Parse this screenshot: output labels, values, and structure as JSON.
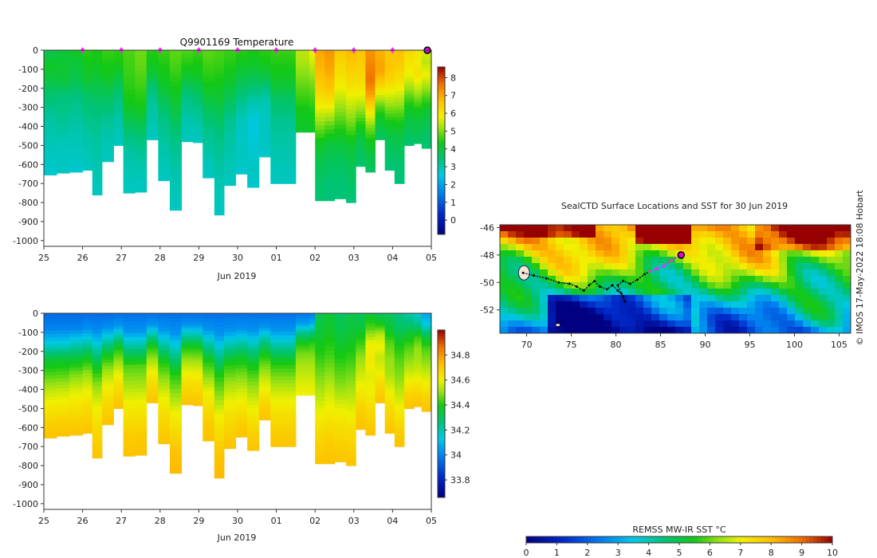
{
  "chart_data": [
    {
      "type": "heatmap",
      "id": "temperature",
      "title": "Q9901169  Temperature",
      "xlabel": "Jun 2019",
      "x_tick_labels": [
        "25",
        "26",
        "27",
        "28",
        "29",
        "30",
        "01",
        "02",
        "03",
        "04",
        "05"
      ],
      "x_range_days": [
        0,
        10
      ],
      "y_ticks": [
        0,
        -100,
        -200,
        -300,
        -400,
        -500,
        -600,
        -700,
        -800,
        -900,
        -1000
      ],
      "ylim": [
        -1030,
        0
      ],
      "colorbar": {
        "min": -0.8,
        "max": 8.6,
        "ticks": [
          0,
          1,
          2,
          3,
          4,
          5,
          6,
          7,
          8
        ]
      },
      "surface_markers_days": [
        1,
        2,
        3,
        4,
        5,
        6,
        7,
        8,
        9,
        10
      ],
      "profiles": [
        {
          "day": 0.0,
          "depth": -655,
          "t": [
            3.8,
            4.2,
            3.9,
            3.5,
            3.2,
            3.0,
            2.9,
            2.8,
            2.7
          ]
        },
        {
          "day": 0.33,
          "depth": -645,
          "t": [
            4.0,
            4.1,
            4.0,
            3.4,
            3.3,
            3.1,
            2.9,
            2.8,
            2.8
          ]
        },
        {
          "day": 0.66,
          "depth": -640,
          "t": [
            4.2,
            4.0,
            3.8,
            3.4,
            3.2,
            3.0,
            2.9,
            2.8,
            2.7
          ]
        },
        {
          "day": 1.0,
          "depth": -630,
          "t": [
            4.5,
            4.3,
            4.1,
            3.6,
            3.4,
            3.2,
            3.0,
            2.9,
            2.8
          ]
        },
        {
          "day": 1.25,
          "depth": -760,
          "t": [
            4.4,
            4.2,
            3.9,
            3.5,
            3.3,
            3.1,
            3.0,
            2.9,
            2.8
          ]
        },
        {
          "day": 1.5,
          "depth": -585,
          "t": [
            4.6,
            4.4,
            4.2,
            3.8,
            3.5,
            3.2,
            3.0,
            2.9,
            2.8
          ]
        },
        {
          "day": 1.8,
          "depth": -500,
          "t": [
            4.5,
            4.4,
            4.1,
            3.7,
            3.4,
            3.2,
            3.0,
            2.9,
            2.8
          ]
        },
        {
          "day": 2.05,
          "depth": -750,
          "t": [
            4.7,
            4.6,
            4.5,
            4.3,
            3.8,
            3.3,
            3.0,
            2.9,
            2.8
          ]
        },
        {
          "day": 2.35,
          "depth": -745,
          "t": [
            4.9,
            4.8,
            4.6,
            4.4,
            3.9,
            3.4,
            3.1,
            2.9,
            2.8
          ]
        },
        {
          "day": 2.65,
          "depth": -470,
          "t": [
            4.5,
            4.3,
            4.1,
            3.6,
            3.3,
            3.1,
            3.0,
            2.9,
            2.8
          ]
        },
        {
          "day": 2.95,
          "depth": -685,
          "t": [
            4.6,
            4.4,
            4.2,
            3.8,
            3.4,
            3.2,
            3.0,
            2.9,
            2.8
          ]
        },
        {
          "day": 3.25,
          "depth": -840,
          "t": [
            4.8,
            4.6,
            4.3,
            3.9,
            3.5,
            3.2,
            3.0,
            2.9,
            2.8
          ]
        },
        {
          "day": 3.55,
          "depth": -480,
          "t": [
            4.7,
            4.5,
            4.2,
            3.8,
            3.4,
            3.2,
            3.0,
            2.9,
            2.8
          ]
        },
        {
          "day": 3.85,
          "depth": -485,
          "t": [
            4.6,
            4.4,
            4.3,
            3.9,
            3.6,
            3.3,
            3.1,
            2.9,
            2.8
          ]
        },
        {
          "day": 4.1,
          "depth": -670,
          "t": [
            4.8,
            4.6,
            4.4,
            4.0,
            3.6,
            3.3,
            3.1,
            2.9,
            2.8
          ]
        },
        {
          "day": 4.4,
          "depth": -865,
          "t": [
            4.7,
            4.5,
            4.2,
            3.8,
            3.4,
            3.2,
            3.0,
            2.9,
            2.8
          ]
        },
        {
          "day": 4.65,
          "depth": -710,
          "t": [
            4.6,
            4.4,
            4.1,
            3.7,
            3.3,
            3.1,
            3.0,
            2.9,
            2.8
          ]
        },
        {
          "day": 4.95,
          "depth": -650,
          "t": [
            4.5,
            4.2,
            3.8,
            3.4,
            3.0,
            2.8,
            2.8,
            2.8,
            2.7
          ]
        },
        {
          "day": 5.25,
          "depth": -720,
          "t": [
            4.4,
            4.1,
            3.6,
            3.0,
            2.6,
            2.6,
            2.7,
            2.8,
            2.7
          ]
        },
        {
          "day": 5.55,
          "depth": -560,
          "t": [
            4.5,
            4.3,
            3.9,
            3.3,
            2.9,
            2.8,
            2.8,
            2.8,
            2.7
          ]
        },
        {
          "day": 5.85,
          "depth": -700,
          "t": [
            4.6,
            4.4,
            4.1,
            3.6,
            3.3,
            3.1,
            3.0,
            2.9,
            2.8
          ]
        },
        {
          "day": 6.2,
          "depth": -700,
          "t": [
            4.6,
            4.4,
            4.1,
            3.6,
            3.3,
            3.1,
            3.0,
            2.9,
            2.8
          ]
        },
        {
          "day": 6.5,
          "depth": -430,
          "t": [
            5.4,
            5.3,
            5.1,
            4.9,
            4.7,
            4.5,
            4.3,
            4.2,
            4.1
          ]
        },
        {
          "day": 6.85,
          "depth": -430,
          "t": [
            5.8,
            5.6,
            5.3,
            5.0,
            4.8,
            4.6,
            4.4,
            4.3,
            4.2
          ]
        },
        {
          "day": 7.0,
          "depth": -790,
          "t": [
            7.0,
            6.8,
            6.4,
            5.8,
            5.0,
            4.2,
            3.8,
            3.6,
            3.5
          ]
        },
        {
          "day": 7.25,
          "depth": -790,
          "t": [
            7.2,
            7.0,
            6.6,
            5.8,
            4.8,
            4.0,
            3.7,
            3.5,
            3.4
          ]
        },
        {
          "day": 7.5,
          "depth": -780,
          "t": [
            6.5,
            6.2,
            5.8,
            5.2,
            4.6,
            4.0,
            3.7,
            3.5,
            3.4
          ]
        },
        {
          "day": 7.8,
          "depth": -800,
          "t": [
            6.8,
            6.4,
            6.0,
            5.4,
            4.8,
            4.1,
            3.8,
            3.6,
            3.4
          ]
        },
        {
          "day": 8.05,
          "depth": -610,
          "t": [
            6.6,
            6.4,
            6.2,
            5.8,
            5.2,
            4.5,
            4.0,
            3.7,
            3.5
          ]
        },
        {
          "day": 8.3,
          "depth": -640,
          "t": [
            7.2,
            7.4,
            7.6,
            7.0,
            6.0,
            5.0,
            4.3,
            3.9,
            3.6
          ]
        },
        {
          "day": 8.55,
          "depth": -470,
          "t": [
            6.8,
            7.0,
            7.0,
            6.4,
            5.6,
            4.8,
            4.2,
            3.9,
            3.6
          ]
        },
        {
          "day": 8.8,
          "depth": -630,
          "t": [
            6.5,
            6.6,
            6.3,
            5.6,
            4.9,
            4.2,
            3.8,
            3.6,
            3.4
          ]
        },
        {
          "day": 9.05,
          "depth": -700,
          "t": [
            6.7,
            6.4,
            6.0,
            5.3,
            4.6,
            4.0,
            3.7,
            3.5,
            3.4
          ]
        },
        {
          "day": 9.3,
          "depth": -500,
          "t": [
            6.2,
            6.0,
            5.8,
            5.3,
            4.7,
            4.2,
            3.9,
            3.7,
            3.5
          ]
        },
        {
          "day": 9.55,
          "depth": -490,
          "t": [
            6.0,
            5.9,
            6.1,
            5.6,
            5.0,
            4.4,
            4.0,
            3.8,
            3.6
          ]
        },
        {
          "day": 9.75,
          "depth": -515,
          "t": [
            5.6,
            5.4,
            5.8,
            5.2,
            4.6,
            4.1,
            3.8,
            3.6,
            3.5
          ]
        }
      ]
    },
    {
      "type": "heatmap",
      "id": "salinity",
      "title": "",
      "xlabel": "Jun 2019",
      "x_tick_labels": [
        "25",
        "26",
        "27",
        "28",
        "29",
        "30",
        "01",
        "02",
        "03",
        "04",
        "05"
      ],
      "x_range_days": [
        0,
        10
      ],
      "y_ticks": [
        0,
        -100,
        -200,
        -300,
        -400,
        -500,
        -600,
        -700,
        -800,
        -900,
        -1000
      ],
      "ylim": [
        -1030,
        0
      ],
      "colorbar": {
        "min": 33.66,
        "max": 35.0,
        "ticks": [
          33.8,
          34,
          34.2,
          34.4,
          34.6,
          34.8
        ]
      },
      "profiles_follow_temperature_depths": true,
      "profile_salinity": [
        [
          33.95,
          34.0,
          34.15,
          34.35,
          34.45,
          34.55,
          34.62,
          34.68,
          34.72
        ],
        [
          33.95,
          34.0,
          34.15,
          34.35,
          34.45,
          34.55,
          34.62,
          34.68,
          34.72
        ],
        [
          33.95,
          34.0,
          34.18,
          34.35,
          34.48,
          34.57,
          34.63,
          34.68,
          34.72
        ],
        [
          33.95,
          34.02,
          34.2,
          34.38,
          34.5,
          34.58,
          34.64,
          34.68,
          34.72
        ],
        [
          33.95,
          34.02,
          34.2,
          34.38,
          34.5,
          34.58,
          34.64,
          34.68,
          34.72
        ],
        [
          33.95,
          34.02,
          34.2,
          34.38,
          34.5,
          34.58,
          34.64,
          34.68,
          34.72
        ],
        [
          33.96,
          34.03,
          34.22,
          34.4,
          34.5,
          34.58,
          34.64,
          34.68,
          34.72
        ],
        [
          33.96,
          34.03,
          34.25,
          34.45,
          34.52,
          34.6,
          34.65,
          34.7,
          34.72
        ],
        [
          33.96,
          34.03,
          34.25,
          34.45,
          34.52,
          34.6,
          34.65,
          34.7,
          34.72
        ],
        [
          33.96,
          34.03,
          34.22,
          34.4,
          34.5,
          34.58,
          34.64,
          34.68,
          34.72
        ],
        [
          33.96,
          34.03,
          34.22,
          34.4,
          34.5,
          34.58,
          34.64,
          34.68,
          34.72
        ],
        [
          33.96,
          34.03,
          34.22,
          34.4,
          34.5,
          34.6,
          34.66,
          34.72,
          34.74
        ],
        [
          33.96,
          34.03,
          34.22,
          34.4,
          34.5,
          34.58,
          34.64,
          34.68,
          34.72
        ],
        [
          33.96,
          34.03,
          34.22,
          34.4,
          34.5,
          34.58,
          34.64,
          34.68,
          34.72
        ],
        [
          33.96,
          34.03,
          34.22,
          34.4,
          34.5,
          34.6,
          34.65,
          34.7,
          34.72
        ],
        [
          33.96,
          34.03,
          34.22,
          34.4,
          34.5,
          34.6,
          34.66,
          34.72,
          34.74
        ],
        [
          33.96,
          34.03,
          34.22,
          34.4,
          34.5,
          34.58,
          34.64,
          34.68,
          34.72
        ],
        [
          33.96,
          34.03,
          34.22,
          34.38,
          34.48,
          34.56,
          34.62,
          34.68,
          34.72
        ],
        [
          33.96,
          34.03,
          34.22,
          34.38,
          34.48,
          34.56,
          34.62,
          34.68,
          34.72
        ],
        [
          33.96,
          34.03,
          34.22,
          34.38,
          34.48,
          34.56,
          34.62,
          34.68,
          34.72
        ],
        [
          33.96,
          34.03,
          34.22,
          34.4,
          34.5,
          34.58,
          34.64,
          34.68,
          34.72
        ],
        [
          33.96,
          34.03,
          34.22,
          34.4,
          34.5,
          34.58,
          34.64,
          34.68,
          34.72
        ],
        [
          33.97,
          34.05,
          34.25,
          34.4,
          34.48,
          34.52,
          34.55,
          34.58,
          34.6
        ],
        [
          33.98,
          34.08,
          34.28,
          34.42,
          34.48,
          34.52,
          34.55,
          34.58,
          34.6
        ],
        [
          34.32,
          34.35,
          34.4,
          34.46,
          34.52,
          34.58,
          34.64,
          34.68,
          34.72
        ],
        [
          34.35,
          34.38,
          34.42,
          34.48,
          34.55,
          34.6,
          34.65,
          34.7,
          34.72
        ],
        [
          34.3,
          34.33,
          34.38,
          34.44,
          34.5,
          34.58,
          34.64,
          34.68,
          34.72
        ],
        [
          34.32,
          34.35,
          34.4,
          34.46,
          34.52,
          34.58,
          34.64,
          34.68,
          34.72
        ],
        [
          34.3,
          34.35,
          34.42,
          34.5,
          34.55,
          34.6,
          34.65,
          34.7,
          34.72
        ],
        [
          34.35,
          34.45,
          34.6,
          34.62,
          34.58,
          34.6,
          34.64,
          34.68,
          34.72
        ],
        [
          34.3,
          34.4,
          34.55,
          34.6,
          34.55,
          34.58,
          34.64,
          34.68,
          34.72
        ],
        [
          34.3,
          34.35,
          34.45,
          34.5,
          34.52,
          34.58,
          34.64,
          34.68,
          34.72
        ],
        [
          34.25,
          34.3,
          34.4,
          34.46,
          34.5,
          34.56,
          34.62,
          34.68,
          34.72
        ],
        [
          34.2,
          34.28,
          34.38,
          34.45,
          34.5,
          34.56,
          34.62,
          34.68,
          34.72
        ],
        [
          34.15,
          34.25,
          34.42,
          34.5,
          34.52,
          34.56,
          34.62,
          34.68,
          34.72
        ],
        [
          34.05,
          34.15,
          34.35,
          34.45,
          34.5,
          34.56,
          34.62,
          34.68,
          34.72
        ]
      ]
    },
    {
      "type": "heatmap",
      "id": "sst-map",
      "title": "SealCTD Surface Locations and SST for 30 Jun 2019",
      "xlim": [
        67,
        106.3
      ],
      "ylim": [
        -53.7,
        -45.8
      ],
      "x_ticks": [
        70,
        75,
        80,
        85,
        90,
        95,
        100,
        105
      ],
      "y_ticks": [
        -46,
        -48,
        -50,
        -52
      ],
      "colorbar": {
        "label": "REMSS MW-IR SST °C",
        "min": 0,
        "max": 10,
        "ticks": [
          0,
          1,
          2,
          3,
          4,
          5,
          6,
          7,
          8,
          9,
          10
        ]
      },
      "current_position": [
        87.3,
        -48.0
      ],
      "recent_track": [
        [
          83.8,
          -49.2
        ],
        [
          84.6,
          -49.0
        ],
        [
          85.4,
          -48.8
        ],
        [
          86.2,
          -48.4
        ],
        [
          87.3,
          -48.0
        ]
      ],
      "track": [
        [
          69.6,
          -49.3
        ],
        [
          70.8,
          -49.5
        ],
        [
          72.2,
          -49.7
        ],
        [
          73.6,
          -50.0
        ],
        [
          74.8,
          -50.1
        ],
        [
          75.6,
          -50.3
        ],
        [
          76.4,
          -50.6
        ],
        [
          77.0,
          -50.2
        ],
        [
          77.6,
          -49.9
        ],
        [
          78.2,
          -50.3
        ],
        [
          79.0,
          -50.5
        ],
        [
          79.6,
          -50.2
        ],
        [
          80.2,
          -50.6
        ],
        [
          80.8,
          -51.0
        ],
        [
          81.0,
          -51.4
        ],
        [
          80.6,
          -50.8
        ],
        [
          80.2,
          -50.2
        ],
        [
          80.8,
          -49.9
        ],
        [
          81.6,
          -50.1
        ],
        [
          82.4,
          -49.8
        ],
        [
          83.2,
          -49.4
        ],
        [
          83.8,
          -49.2
        ]
      ],
      "credit": "© IMOS 17-May-2022 18:08 Hobart"
    }
  ]
}
